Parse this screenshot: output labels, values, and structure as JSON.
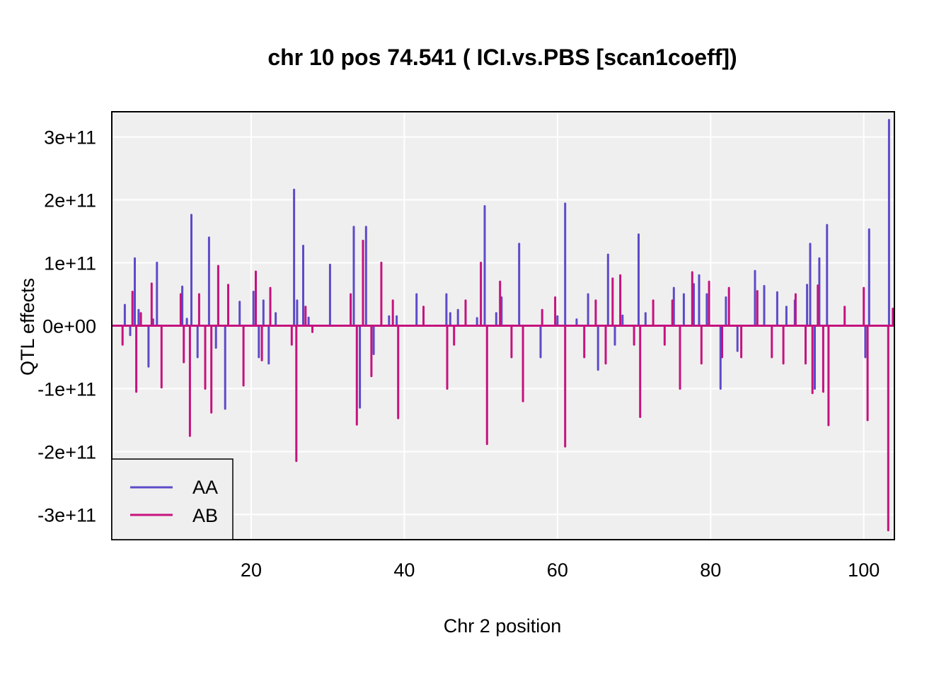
{
  "chart_data": {
    "type": "line",
    "title": "chr 10 pos 74.541 ( ICI.vs.PBS  [scan1coeff])",
    "xlabel": "Chr 2 position",
    "ylabel": "QTL effects",
    "xlim": [
      1.8,
      104
    ],
    "ylim": [
      -340000000000.0,
      340000000000.0
    ],
    "x_ticks": [
      20,
      40,
      60,
      80,
      100
    ],
    "x_tick_labels": [
      "20",
      "40",
      "60",
      "80",
      "100"
    ],
    "y_ticks": [
      -300000000000.0,
      -200000000000.0,
      -100000000000.0,
      0,
      100000000000.0,
      200000000000.0,
      300000000000.0
    ],
    "y_tick_labels": [
      "-3e+11",
      "-2e+11",
      "-1e+11",
      "0e+00",
      "1e+11",
      "2e+11",
      "3e+11"
    ],
    "grid": true,
    "legend_position": "bottom-left",
    "colors": {
      "AA": "#5c4bc9",
      "AB": "#c6127e",
      "panel": "#efefef",
      "grid": "#ffffff"
    },
    "series": [
      {
        "name": "AA",
        "x": [
          2.0,
          3.5,
          4.2,
          4.8,
          5.3,
          6.6,
          7.2,
          7.7,
          8.6,
          11.0,
          11.6,
          12.2,
          13.0,
          14.5,
          15.4,
          16.6,
          18.5,
          20.3,
          21.0,
          21.6,
          22.3,
          23.2,
          25.6,
          26.0,
          26.8,
          27.5,
          30.3,
          33.4,
          34.2,
          35.0,
          36.0,
          38.0,
          39.0,
          41.6,
          45.5,
          46.0,
          47.0,
          49.5,
          50.5,
          52.0,
          52.7,
          55.0,
          57.8,
          60.0,
          61.0,
          62.5,
          64.0,
          65.3,
          66.6,
          67.5,
          68.5,
          70.6,
          71.5,
          75.2,
          76.5,
          77.8,
          78.5,
          79.5,
          81.3,
          82.0,
          83.5,
          85.8,
          87.0,
          88.7,
          89.9,
          91.0,
          92.6,
          93.0,
          93.6,
          94.2,
          95.2,
          98.0,
          100.2,
          100.7,
          103.3,
          103.8
        ],
        "values": [
          0,
          33000000000.0,
          -15000000000.0,
          107000000000.0,
          25000000000.0,
          -65000000000.0,
          10000000000.0,
          100000000000.0,
          0,
          62000000000.0,
          11000000000.0,
          176000000000.0,
          -50000000000.0,
          140000000000.0,
          -35000000000.0,
          -132000000000.0,
          38000000000.0,
          54000000000.0,
          -50000000000.0,
          40000000000.0,
          -60000000000.0,
          20000000000.0,
          216000000000.0,
          40000000000.0,
          127000000000.0,
          12800000000.0,
          97000000000.0,
          157000000000.0,
          -130000000000.0,
          157000000000.0,
          -45000000000.0,
          15000000000.0,
          15000000000.0,
          50000000000.0,
          50000000000.0,
          20000000000.0,
          25000000000.0,
          12000000000.0,
          190000000000.0,
          20000000000.0,
          45000000000.0,
          130000000000.0,
          -50000000000.0,
          15000000000.0,
          194000000000.0,
          10000000000.0,
          50000000000.0,
          -70000000000.0,
          113000000000.0,
          -30000000000.0,
          16000000000.0,
          145000000000.0,
          20000000000.0,
          60000000000.0,
          50000000000.0,
          66000000000.0,
          80000000000.0,
          50000000000.0,
          -100000000000.0,
          45000000000.0,
          -40000000000.0,
          87000000000.0,
          63000000000.0,
          53000000000.0,
          30000000000.0,
          40000000000.0,
          65000000000.0,
          130000000000.0,
          -100000000000.0,
          107000000000.0,
          160000000000.0,
          0,
          -50000000000.0,
          153000000000.0,
          327000000000.0,
          0
        ]
      },
      {
        "name": "AB",
        "x": [
          2.0,
          3.2,
          4.5,
          5.0,
          5.6,
          7.0,
          8.3,
          10.8,
          11.2,
          12.0,
          13.2,
          14.0,
          14.8,
          15.7,
          17.0,
          19.0,
          20.6,
          21.4,
          22.5,
          25.3,
          25.9,
          27.1,
          28.0,
          33.0,
          33.8,
          34.6,
          35.7,
          37.0,
          38.5,
          39.2,
          42.5,
          45.6,
          46.5,
          48.0,
          50.0,
          50.8,
          52.5,
          54.0,
          55.5,
          58.0,
          59.7,
          61.0,
          63.5,
          65.0,
          66.3,
          67.2,
          68.2,
          70.0,
          70.8,
          72.5,
          74.0,
          75.0,
          76.0,
          77.6,
          78.8,
          79.8,
          81.5,
          82.4,
          84.0,
          86.1,
          88.0,
          89.5,
          91.1,
          92.4,
          93.3,
          94.0,
          94.7,
          95.4,
          97.5,
          100.0,
          100.5,
          103.2,
          103.8
        ],
        "values": [
          0,
          -30000000000.0,
          54000000000.0,
          -105000000000.0,
          20000000000.0,
          67000000000.0,
          -98000000000.0,
          50000000000.0,
          -58000000000.0,
          -175000000000.0,
          50000000000.0,
          -100000000000.0,
          -138000000000.0,
          95000000000.0,
          65000000000.0,
          -95000000000.0,
          86000000000.0,
          -55000000000.0,
          60000000000.0,
          -30000000000.0,
          -215000000000.0,
          30000000000.0,
          -10000000000.0,
          50000000000.0,
          -157000000000.0,
          135000000000.0,
          -80000000000.0,
          100000000000.0,
          40000000000.0,
          -147000000000.0,
          30000000000.0,
          -100000000000.0,
          -30000000000.0,
          40000000000.0,
          100000000000.0,
          -188000000000.0,
          70000000000.0,
          -50000000000.0,
          -120000000000.0,
          25000000000.0,
          45000000000.0,
          -192000000000.0,
          -50000000000.0,
          40000000000.0,
          -60000000000.0,
          75000000000.0,
          80000000000.0,
          -30000000000.0,
          -145000000000.0,
          40000000000.0,
          -30000000000.0,
          40000000000.0,
          -100000000000.0,
          85000000000.0,
          -60000000000.0,
          70000000000.0,
          -50000000000.0,
          60000000000.0,
          -50000000000.0,
          55000000000.0,
          -50000000000.0,
          -60000000000.0,
          50000000000.0,
          -60000000000.0,
          -107000000000.0,
          64000000000.0,
          -105000000000.0,
          -158000000000.0,
          30000000000.0,
          60000000000.0,
          -150000000000.0,
          -325000000000.0,
          27000000000.0
        ]
      }
    ]
  }
}
